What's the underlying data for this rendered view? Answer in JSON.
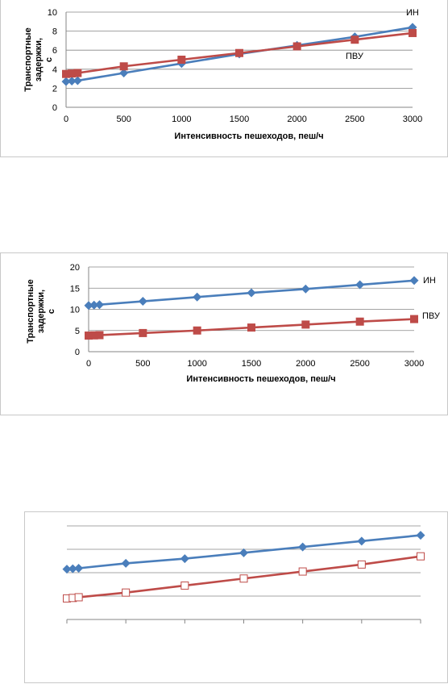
{
  "colors": {
    "series1": "#4a7ebb",
    "series2": "#be4b48",
    "grid": "#868686",
    "axis": "#868686"
  },
  "chart_data": [
    {
      "type": "line",
      "xlabel": "Интенсивность пешеходов, пеш/ч",
      "ylabel": "Транспортные задержки, с",
      "xlim": [
        0,
        3000
      ],
      "ylim": [
        0,
        10
      ],
      "xticks": [
        "0",
        "500",
        "1000",
        "1500",
        "2000",
        "2500",
        "3000"
      ],
      "yticks": [
        "0",
        "2",
        "4",
        "6",
        "8",
        "10"
      ],
      "grid": true,
      "x": [
        0,
        50,
        100,
        500,
        1000,
        1500,
        2000,
        2500,
        3000
      ],
      "series": [
        {
          "name": "ИН",
          "marker": "diamond",
          "values": [
            2.7,
            2.75,
            2.8,
            3.6,
            4.6,
            5.6,
            6.5,
            7.4,
            8.4
          ]
        },
        {
          "name": "ПВУ",
          "marker": "square",
          "values": [
            3.5,
            3.55,
            3.6,
            4.3,
            5.0,
            5.7,
            6.4,
            7.1,
            7.8
          ]
        }
      ]
    },
    {
      "type": "line",
      "xlabel": "Интенсивность пешеходов, пеш/ч",
      "ylabel": "Транспортные задержки, с",
      "xlim": [
        0,
        3000
      ],
      "ylim": [
        0,
        20
      ],
      "xticks": [
        "0",
        "500",
        "1000",
        "1500",
        "2000",
        "2500",
        "3000"
      ],
      "yticks": [
        "0",
        "5",
        "10",
        "15",
        "20"
      ],
      "grid": true,
      "x": [
        0,
        50,
        100,
        500,
        1000,
        1500,
        2000,
        2500,
        3000
      ],
      "series": [
        {
          "name": "ИН",
          "marker": "diamond",
          "values": [
            10.9,
            11.0,
            11.1,
            11.9,
            12.9,
            13.9,
            14.8,
            15.8,
            16.8
          ]
        },
        {
          "name": "ПВУ",
          "marker": "square",
          "values": [
            3.8,
            3.85,
            3.9,
            4.4,
            5.0,
            5.7,
            6.4,
            7.1,
            7.7
          ]
        }
      ]
    },
    {
      "type": "line",
      "xlabel": "",
      "ylabel": "",
      "xlim": [
        0,
        3000
      ],
      "ylim": [
        0,
        4
      ],
      "xticks": [],
      "yticks": [],
      "grid": true,
      "x": [
        0,
        50,
        100,
        500,
        1000,
        1500,
        2000,
        2500,
        3000
      ],
      "series": [
        {
          "name": "",
          "marker": "diamond",
          "values": [
            2.15,
            2.17,
            2.19,
            2.4,
            2.6,
            2.85,
            3.1,
            3.35,
            3.6
          ]
        },
        {
          "name": "",
          "marker": "open-square",
          "values": [
            0.9,
            0.92,
            0.95,
            1.15,
            1.45,
            1.75,
            2.05,
            2.35,
            2.7
          ]
        }
      ]
    }
  ]
}
